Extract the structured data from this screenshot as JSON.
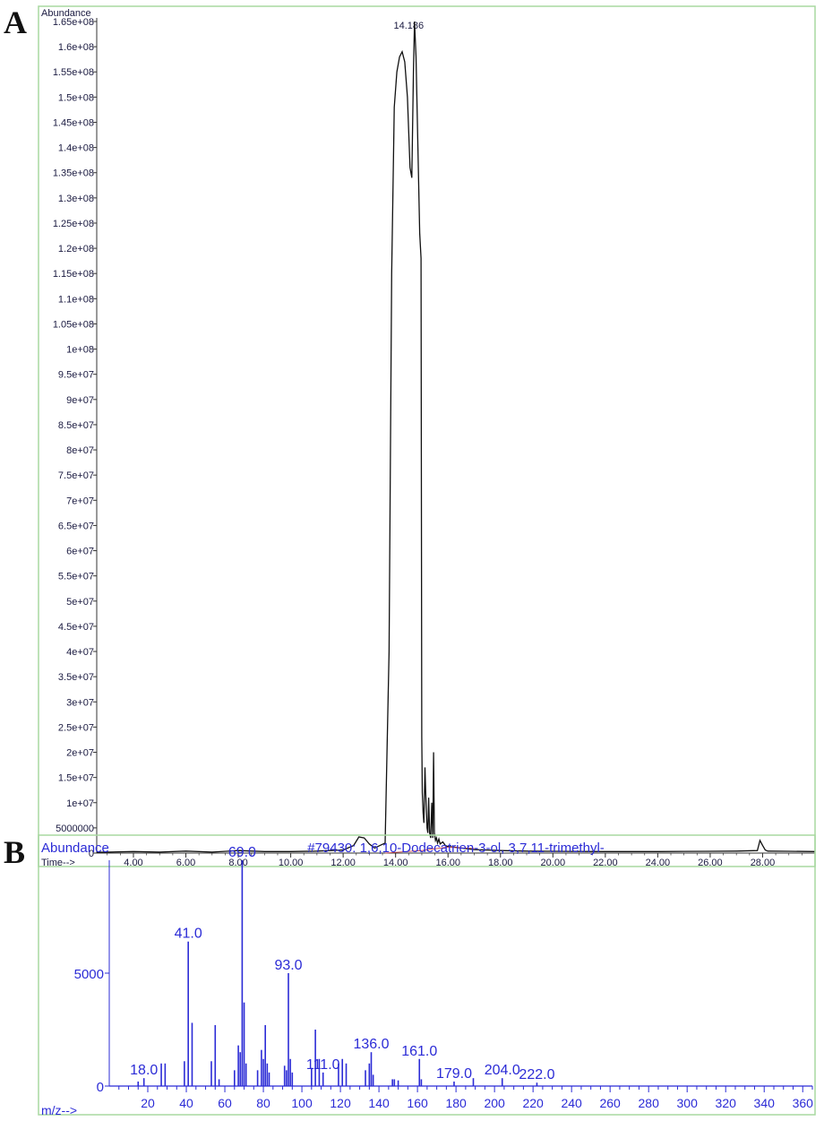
{
  "panels": {
    "a": "A",
    "b": "B"
  },
  "chart_data": [
    {
      "type": "line",
      "ylabel": "Abundance",
      "xlabel": "Time-->",
      "xlim": [
        2.6,
        30.0
      ],
      "ylim": [
        0,
        165000000
      ],
      "x_ticks": [
        "4.00",
        "6.00",
        "8.00",
        "10.00",
        "12.00",
        "14.00",
        "16.00",
        "18.00",
        "20.00",
        "22.00",
        "24.00",
        "26.00",
        "28.00"
      ],
      "y_ticks": [
        "0",
        "5000000",
        "1e+07",
        "1.5e+07",
        "2e+07",
        "2.5e+07",
        "3e+07",
        "3.5e+07",
        "4e+07",
        "4.5e+07",
        "5e+07",
        "5.5e+07",
        "6e+07",
        "6.5e+07",
        "7e+07",
        "7.5e+07",
        "8e+07",
        "8.5e+07",
        "9e+07",
        "9.5e+07",
        "1e+08",
        "1.05e+08",
        "1.1e+08",
        "1.15e+08",
        "1.2e+08",
        "1.25e+08",
        "1.3e+08",
        "1.35e+08",
        "1.4e+08",
        "1.45e+08",
        "1.5e+08",
        "1.55e+08",
        "1.6e+08",
        "1.65e+08"
      ],
      "peak_label": {
        "text": "14.186",
        "x": 14.5,
        "y": 165000000
      },
      "grid": false,
      "series": [
        {
          "color": "#111111",
          "x": [
            2.6,
            4.0,
            5.0,
            6.0,
            7.0,
            8.0,
            9.0,
            10.0,
            11.0,
            12.0,
            12.4,
            12.6,
            12.8,
            13.0,
            13.2,
            13.4,
            13.6,
            13.75,
            13.85,
            13.95,
            14.05,
            14.15,
            14.25,
            14.35,
            14.45,
            14.55,
            14.62,
            14.68,
            14.72,
            14.78,
            14.85,
            14.92,
            14.97,
            15.0,
            15.02,
            15.05,
            15.08,
            15.12,
            15.15,
            15.2,
            15.23,
            15.26,
            15.3,
            15.34,
            15.38,
            15.42,
            15.45,
            15.48,
            15.52,
            15.56,
            15.6,
            15.65,
            15.7,
            15.8,
            15.9,
            16.0,
            16.2,
            16.5,
            17.0,
            17.5,
            18.0,
            19.0,
            20.0,
            22.0,
            24.0,
            26.0,
            27.0,
            27.8,
            27.9,
            28.0,
            28.1,
            28.2,
            29.0,
            30.0
          ],
          "y": [
            150000,
            300000,
            200000,
            400000,
            200000,
            500000,
            300000,
            300000,
            400000,
            600000,
            1500000,
            3200000,
            3000000,
            1800000,
            1000000,
            1500000,
            2000000,
            40000000,
            115000000,
            148000000,
            155000000,
            158000000,
            159000000,
            157000000,
            150000000,
            136000000,
            134000000,
            155000000,
            165000000,
            158000000,
            140000000,
            123000000,
            118000000,
            23000000,
            12000000,
            8000000,
            6000000,
            17000000,
            12000000,
            5000000,
            4000000,
            11000000,
            4000000,
            3000000,
            10000000,
            3000000,
            20000000,
            4000000,
            2500000,
            3000000,
            2000000,
            2800000,
            1800000,
            2200000,
            1500000,
            1300000,
            1200000,
            1000000,
            700000,
            600000,
            500000,
            400000,
            350000,
            300000,
            300000,
            350000,
            400000,
            500000,
            2500000,
            1500000,
            600000,
            400000,
            350000,
            300000
          ]
        },
        {
          "color": "#d04040",
          "x": [
            13.6,
            15.0,
            16.0,
            17.0
          ],
          "y": [
            0,
            500000,
            1200000,
            900000
          ]
        }
      ]
    },
    {
      "type": "bar",
      "title": "#79430: 1,6,10-Dodecatrien-3-ol, 3,7,11-trimethyl-",
      "ylabel": "Abundance",
      "xlabel": "m/z-->",
      "xlim": [
        0,
        365
      ],
      "ylim": [
        0,
        9999
      ],
      "x_ticks": [
        "20",
        "40",
        "60",
        "80",
        "100",
        "120",
        "140",
        "160",
        "180",
        "200",
        "220",
        "240",
        "260",
        "280",
        "300",
        "320",
        "340",
        "360"
      ],
      "y_ticks": [
        "0",
        "5000"
      ],
      "peaks": [
        {
          "mz": 15,
          "ab": 200
        },
        {
          "mz": 18,
          "ab": 350
        },
        {
          "mz": 27,
          "ab": 1000
        },
        {
          "mz": 29,
          "ab": 1000
        },
        {
          "mz": 39,
          "ab": 1100
        },
        {
          "mz": 41,
          "ab": 6400
        },
        {
          "mz": 43,
          "ab": 2800
        },
        {
          "mz": 53,
          "ab": 1100
        },
        {
          "mz": 55,
          "ab": 2700
        },
        {
          "mz": 57,
          "ab": 300
        },
        {
          "mz": 65,
          "ab": 700
        },
        {
          "mz": 67,
          "ab": 1800
        },
        {
          "mz": 68,
          "ab": 1500
        },
        {
          "mz": 69,
          "ab": 9999
        },
        {
          "mz": 70,
          "ab": 3700
        },
        {
          "mz": 71,
          "ab": 1000
        },
        {
          "mz": 77,
          "ab": 700
        },
        {
          "mz": 79,
          "ab": 1600
        },
        {
          "mz": 80,
          "ab": 1200
        },
        {
          "mz": 81,
          "ab": 2700
        },
        {
          "mz": 82,
          "ab": 1000
        },
        {
          "mz": 83,
          "ab": 600
        },
        {
          "mz": 91,
          "ab": 900
        },
        {
          "mz": 92,
          "ab": 700
        },
        {
          "mz": 93,
          "ab": 5000
        },
        {
          "mz": 94,
          "ab": 1200
        },
        {
          "mz": 95,
          "ab": 600
        },
        {
          "mz": 105,
          "ab": 800
        },
        {
          "mz": 107,
          "ab": 2500
        },
        {
          "mz": 109,
          "ab": 1200
        },
        {
          "mz": 111,
          "ab": 600
        },
        {
          "mz": 119,
          "ab": 1000
        },
        {
          "mz": 121,
          "ab": 1200
        },
        {
          "mz": 123,
          "ab": 1000
        },
        {
          "mz": 133,
          "ab": 700
        },
        {
          "mz": 135,
          "ab": 1000
        },
        {
          "mz": 136,
          "ab": 1500
        },
        {
          "mz": 137,
          "ab": 500
        },
        {
          "mz": 147,
          "ab": 300
        },
        {
          "mz": 148,
          "ab": 300
        },
        {
          "mz": 150,
          "ab": 250
        },
        {
          "mz": 161,
          "ab": 1200
        },
        {
          "mz": 162,
          "ab": 300
        },
        {
          "mz": 179,
          "ab": 200
        },
        {
          "mz": 189,
          "ab": 350
        },
        {
          "mz": 204,
          "ab": 350
        },
        {
          "mz": 222,
          "ab": 150
        }
      ],
      "peak_labels": [
        {
          "text": "18.0",
          "mz": 18,
          "ab": 350
        },
        {
          "text": "41.0",
          "mz": 41,
          "ab": 6400
        },
        {
          "text": "69.0",
          "mz": 69,
          "ab": 9999
        },
        {
          "text": "93.0",
          "mz": 93,
          "ab": 5000
        },
        {
          "text": "111.0",
          "mz": 111,
          "ab": 600
        },
        {
          "text": "136.0",
          "mz": 136,
          "ab": 1500
        },
        {
          "text": "161.0",
          "mz": 161,
          "ab": 1200
        },
        {
          "text": "179.0",
          "mz": 179,
          "ab": 200
        },
        {
          "text": "204.0",
          "mz": 204,
          "ab": 350
        },
        {
          "text": "222.0",
          "mz": 222,
          "ab": 150
        }
      ]
    }
  ]
}
